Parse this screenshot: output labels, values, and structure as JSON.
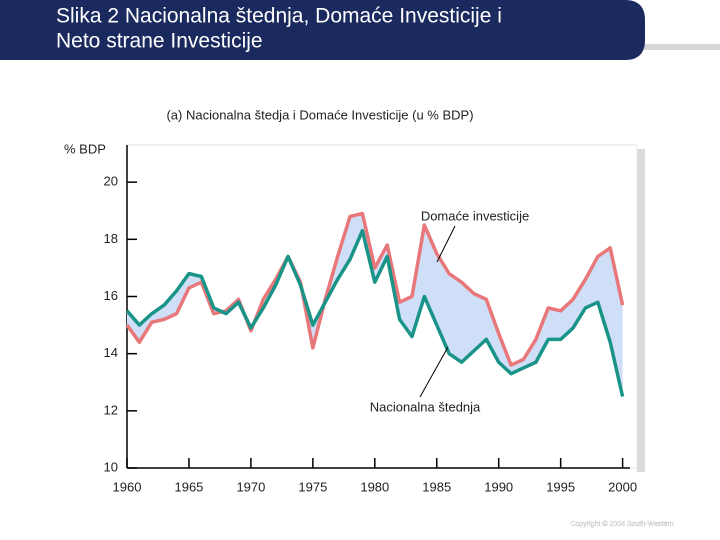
{
  "page_title": [
    "Slika 2 Nacionalna štednja, Domaće Investicije i",
    "Neto strane Investicije"
  ],
  "copyright": "Copyright © 2004 South-Western",
  "chart_data": {
    "type": "line",
    "title": "(a) Nacionalna štedja i  Domaće Investicije  (u % BDP)",
    "ylabel": "% BDP",
    "x": [
      1960,
      1961,
      1962,
      1963,
      1964,
      1965,
      1966,
      1967,
      1968,
      1969,
      1970,
      1971,
      1972,
      1973,
      1974,
      1975,
      1976,
      1977,
      1978,
      1979,
      1980,
      1981,
      1982,
      1983,
      1984,
      1985,
      1986,
      1987,
      1988,
      1989,
      1990,
      1991,
      1992,
      1993,
      1994,
      1995,
      1996,
      1997,
      1998,
      1999,
      2000
    ],
    "series": [
      {
        "name": "Domaće investicije",
        "color": "#e8777a",
        "values": [
          15.0,
          14.4,
          15.1,
          15.2,
          15.4,
          16.3,
          16.5,
          15.4,
          15.5,
          15.9,
          14.8,
          15.9,
          16.6,
          17.4,
          16.5,
          14.2,
          15.9,
          17.4,
          18.8,
          18.9,
          17.0,
          17.8,
          15.8,
          16.0,
          18.5,
          17.5,
          16.8,
          16.5,
          16.1,
          15.9,
          14.7,
          13.6,
          13.8,
          14.5,
          15.6,
          15.5,
          15.9,
          16.6,
          17.4,
          17.7,
          15.7
        ]
      },
      {
        "name": "Nacionalna štednja",
        "color": "#1a9488",
        "values": [
          15.5,
          15.0,
          15.4,
          15.7,
          16.2,
          16.8,
          16.7,
          15.6,
          15.4,
          15.8,
          14.9,
          15.6,
          16.4,
          17.4,
          16.4,
          15.0,
          15.8,
          16.6,
          17.3,
          18.3,
          16.5,
          17.4,
          15.2,
          14.6,
          16.0,
          15.0,
          14.0,
          13.7,
          14.1,
          14.5,
          13.7,
          13.3,
          13.5,
          13.7,
          14.5,
          14.5,
          14.9,
          15.6,
          15.8,
          14.4,
          12.5
        ]
      }
    ],
    "fill_color": "#cfdff7",
    "xlim": [
      1960,
      2001
    ],
    "xticks": [
      1960,
      1965,
      1970,
      1975,
      1980,
      1985,
      1990,
      1995,
      2000
    ],
    "ylim": [
      10,
      21.3
    ],
    "yticks": [
      10,
      12,
      14,
      16,
      18,
      20
    ]
  }
}
